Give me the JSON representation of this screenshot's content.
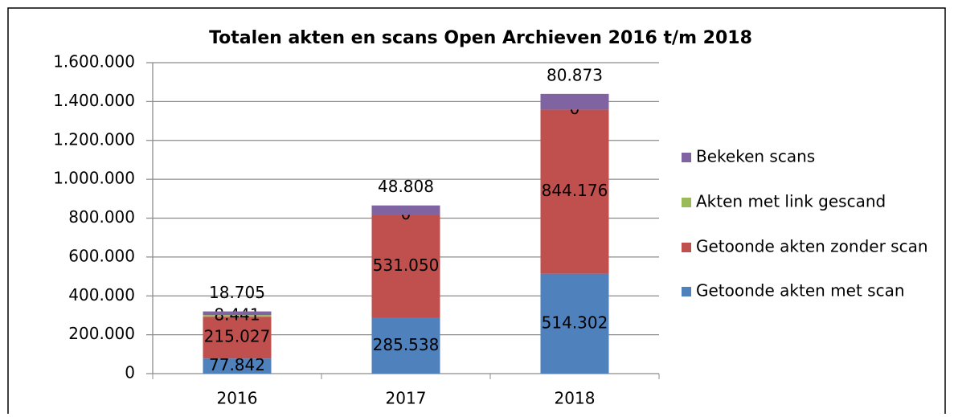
{
  "chart_data": {
    "type": "stacked_bar",
    "title": "Totalen akten en scans Open Archieven 2016 t/m 2018",
    "categories": [
      "2016",
      "2017",
      "2018"
    ],
    "series": [
      {
        "name": "Getoonde akten met scan",
        "color": "#4f81bd",
        "values": [
          77842,
          285538,
          514302
        ],
        "value_labels": [
          "77.842",
          "285.538",
          "514.302"
        ]
      },
      {
        "name": "Getoonde akten zonder scan",
        "color": "#c0504d",
        "values": [
          215027,
          531050,
          844176
        ],
        "value_labels": [
          "215.027",
          "531.050",
          "844.176"
        ]
      },
      {
        "name": "Akten met link gescand",
        "color": "#9bbb59",
        "values": [
          8441,
          0,
          0
        ],
        "value_labels": [
          "8.441",
          "0",
          "0"
        ]
      },
      {
        "name": "Bekeken scans",
        "color": "#8064a2",
        "values": [
          18705,
          48808,
          80873
        ],
        "value_labels": [
          "18.705",
          "48.808",
          "80.873"
        ]
      }
    ],
    "ylim": [
      0,
      1600000
    ],
    "yticks": [
      0,
      {
        "value": 200000,
        "label": "200.000"
      },
      {
        "value": 400000,
        "label": "400.000"
      },
      {
        "value": 600000,
        "label": "600.000"
      },
      {
        "value": 800000,
        "label": "800.000"
      },
      {
        "value": 1000000,
        "label": "1.000.000"
      },
      {
        "value": 1200000,
        "label": "1.200.000"
      },
      {
        "value": 1400000,
        "label": "1.400.000"
      },
      {
        "value": 1600000,
        "label": "1.600.000"
      }
    ],
    "grid": true
  }
}
